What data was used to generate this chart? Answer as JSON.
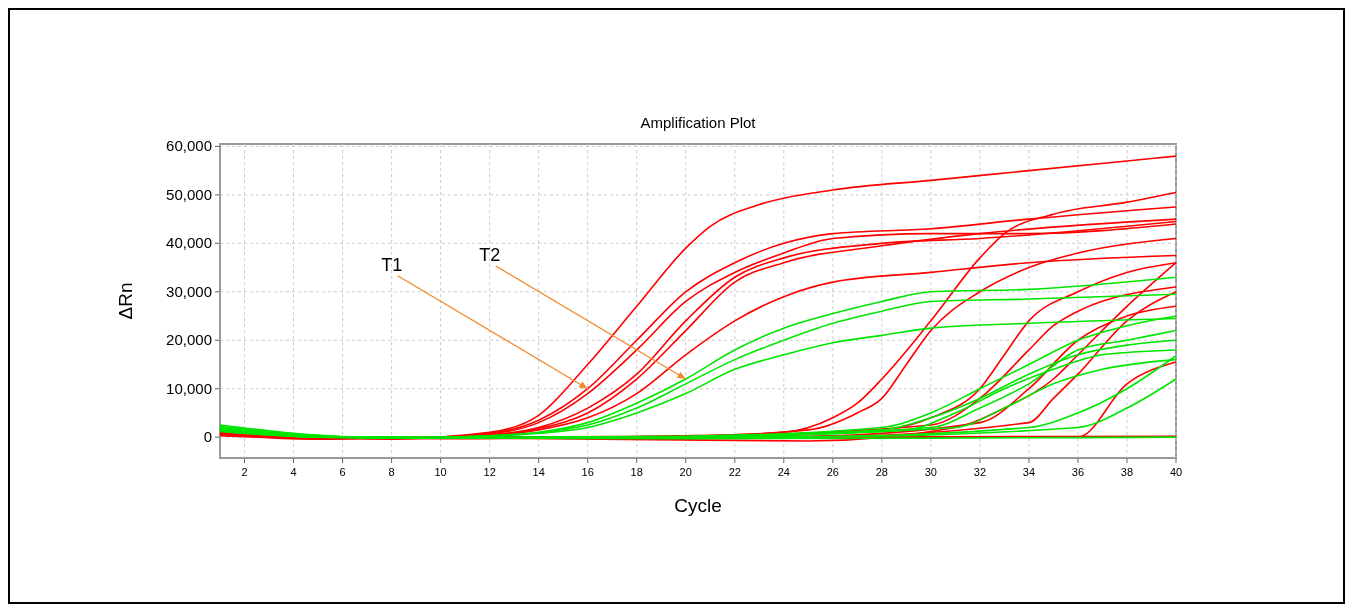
{
  "chart_data": {
    "type": "line",
    "title": "Amplification Plot",
    "xlabel": "Cycle",
    "ylabel": "ΔRn",
    "xlim": [
      1,
      40
    ],
    "xticks": [
      2,
      4,
      6,
      8,
      10,
      12,
      14,
      16,
      18,
      20,
      22,
      24,
      26,
      28,
      30,
      32,
      34,
      36,
      38,
      40
    ],
    "ylim": [
      -4300,
      60500
    ],
    "yticks": [
      {
        "value": 0,
        "label": "0"
      },
      {
        "value": 10000,
        "label": "10,000"
      },
      {
        "value": 20000,
        "label": "20,000"
      },
      {
        "value": 30000,
        "label": "30,000"
      },
      {
        "value": 40000,
        "label": "40,000"
      },
      {
        "value": 50000,
        "label": "50,000"
      },
      {
        "value": 60000,
        "label": "60,000"
      }
    ],
    "grid": true,
    "marker": "none",
    "line_style": "solid",
    "annotations": [
      {
        "text": "T1",
        "x": 16,
        "y": 10000
      },
      {
        "text": "T2",
        "x": 20,
        "y": 12000
      }
    ],
    "series": [
      {
        "color": "#ff0000",
        "x": [
          1,
          4,
          8,
          12,
          14,
          16,
          18,
          20,
          21,
          23,
          26,
          30,
          34,
          38,
          40
        ],
        "values": [
          1000,
          300,
          -300,
          1000,
          4500,
          15000,
          27000,
          39000,
          43500,
          48000,
          51000,
          53000,
          55000,
          57000,
          58000
        ]
      },
      {
        "color": "#ff0000",
        "x": [
          1,
          4,
          8,
          12,
          14,
          16,
          18,
          20,
          22,
          24,
          26,
          30,
          34,
          40
        ],
        "values": [
          800,
          200,
          -300,
          800,
          3500,
          10000,
          20000,
          30000,
          36000,
          40000,
          42000,
          43000,
          45000,
          47500
        ]
      },
      {
        "color": "#ff0000",
        "x": [
          1,
          4,
          8,
          12,
          14,
          16,
          18,
          20,
          22,
          24,
          26,
          30,
          34,
          40
        ],
        "values": [
          600,
          200,
          -200,
          700,
          3000,
          9000,
          18000,
          28000,
          34000,
          38000,
          41000,
          42000,
          42000,
          44000
        ]
      },
      {
        "color": "#ff0000",
        "x": [
          1,
          4,
          8,
          12,
          14,
          16,
          18,
          20,
          22,
          24,
          28,
          32,
          40
        ],
        "values": [
          900,
          300,
          -300,
          500,
          2000,
          6000,
          13000,
          24000,
          33000,
          37000,
          40000,
          41000,
          44500
        ]
      },
      {
        "color": "#ff0000",
        "x": [
          1,
          4,
          8,
          12,
          14,
          16,
          18,
          20,
          22,
          24,
          28,
          32,
          40
        ],
        "values": [
          700,
          200,
          -200,
          400,
          1800,
          5000,
          12000,
          22000,
          32000,
          36000,
          39500,
          42000,
          45000
        ]
      },
      {
        "color": "#ff0000",
        "x": [
          1,
          4,
          8,
          12,
          14,
          16,
          18,
          20,
          22,
          24,
          26,
          30,
          34,
          40
        ],
        "values": [
          500,
          100,
          -300,
          300,
          1500,
          4000,
          9000,
          17000,
          24000,
          29000,
          32000,
          34000,
          36000,
          37500
        ]
      },
      {
        "color": "#ff0000",
        "x": [
          1,
          5,
          10,
          20,
          24,
          26,
          27,
          28,
          30,
          32,
          33,
          35,
          38,
          40
        ],
        "values": [
          1200,
          0,
          -200,
          300,
          1000,
          4000,
          7000,
          12000,
          24000,
          37000,
          42000,
          46000,
          48500,
          50500
        ]
      },
      {
        "color": "#ff0000",
        "x": [
          1,
          5,
          10,
          20,
          25,
          27,
          28,
          29,
          30,
          32,
          34,
          36,
          40
        ],
        "values": [
          800,
          -200,
          0,
          200,
          1500,
          5000,
          8000,
          15000,
          22000,
          30000,
          35000,
          38000,
          41000
        ]
      },
      {
        "color": "#ff0000",
        "x": [
          1,
          5,
          10,
          20,
          28,
          30,
          32,
          33,
          34,
          36,
          38,
          40
        ],
        "values": [
          1000,
          -100,
          -300,
          200,
          1500,
          4000,
          10000,
          17000,
          24000,
          30000,
          34000,
          36000
        ]
      },
      {
        "color": "#ff0000",
        "x": [
          1,
          5,
          10,
          20,
          30,
          32,
          34,
          35,
          36,
          40
        ],
        "values": [
          600,
          0,
          -200,
          100,
          2500,
          8000,
          18000,
          23000,
          26000,
          31000
        ]
      },
      {
        "color": "#ff0000",
        "x": [
          1,
          5,
          10,
          25,
          31,
          33,
          35,
          36,
          38,
          40
        ],
        "values": [
          500,
          -400,
          -100,
          -800,
          2000,
          6000,
          12000,
          17000,
          27000,
          36000
        ]
      },
      {
        "color": "#ff0000",
        "x": [
          1,
          5,
          10,
          25,
          34,
          35,
          36,
          38,
          40
        ],
        "values": [
          900,
          -100,
          -200,
          0,
          3000,
          8000,
          13000,
          24000,
          30000
        ]
      },
      {
        "color": "#ff0000",
        "x": [
          1,
          5,
          10,
          25,
          36,
          38,
          40
        ],
        "values": [
          700,
          0,
          -200,
          0,
          0,
          11000,
          15500
        ]
      },
      {
        "color": "#ff0000",
        "x": [
          1,
          5,
          10,
          25,
          32,
          34,
          36,
          38,
          40
        ],
        "values": [
          400,
          0,
          -100,
          200,
          3000,
          10000,
          20000,
          25000,
          27000
        ]
      },
      {
        "color": "#ff0000",
        "x": [
          1,
          5,
          10,
          20,
          30,
          40
        ],
        "values": [
          300,
          -200,
          -100,
          0,
          100,
          200
        ]
      },
      {
        "color": "#00e600",
        "x": [
          1,
          4,
          8,
          12,
          14,
          16,
          18,
          20,
          22,
          24,
          26,
          28,
          30,
          34,
          40
        ],
        "values": [
          2500,
          800,
          -200,
          300,
          1000,
          3000,
          7000,
          12000,
          18000,
          22500,
          25500,
          28000,
          30000,
          30500,
          33000
        ]
      },
      {
        "color": "#00e600",
        "x": [
          1,
          4,
          8,
          12,
          14,
          16,
          18,
          20,
          22,
          24,
          26,
          28,
          30,
          34,
          40
        ],
        "values": [
          2200,
          700,
          -200,
          300,
          900,
          2500,
          6000,
          11000,
          16000,
          20000,
          23500,
          26000,
          28000,
          28500,
          29500
        ]
      },
      {
        "color": "#00e600",
        "x": [
          1,
          4,
          8,
          12,
          14,
          16,
          18,
          20,
          22,
          24,
          26,
          28,
          30,
          34,
          40
        ],
        "values": [
          2000,
          600,
          -100,
          200,
          800,
          2000,
          5000,
          9000,
          14000,
          17000,
          19500,
          21000,
          22500,
          23500,
          24500
        ]
      },
      {
        "color": "#00e600",
        "x": [
          1,
          5,
          10,
          20,
          28,
          30,
          32,
          34,
          36,
          38,
          40
        ],
        "values": [
          1800,
          200,
          -100,
          200,
          2000,
          5000,
          10000,
          15000,
          20000,
          23000,
          25000
        ]
      },
      {
        "color": "#00e600",
        "x": [
          1,
          5,
          10,
          20,
          28,
          30,
          32,
          34,
          36,
          38,
          40
        ],
        "values": [
          1500,
          100,
          -100,
          100,
          1500,
          4000,
          8000,
          13000,
          17000,
          19000,
          20000
        ]
      },
      {
        "color": "#00e600",
        "x": [
          1,
          5,
          10,
          20,
          29,
          31,
          33,
          35,
          37,
          40
        ],
        "values": [
          1600,
          0,
          -200,
          100,
          1500,
          5000,
          10000,
          14000,
          17000,
          18000
        ]
      },
      {
        "color": "#00e600",
        "x": [
          1,
          5,
          10,
          20,
          30,
          32,
          34,
          36,
          38,
          40
        ],
        "values": [
          1400,
          100,
          -100,
          0,
          2000,
          6000,
          11000,
          18000,
          20000,
          22000
        ]
      },
      {
        "color": "#00e600",
        "x": [
          1,
          5,
          10,
          20,
          31,
          33,
          35,
          37,
          40
        ],
        "values": [
          1700,
          0,
          -200,
          100,
          2000,
          6000,
          11000,
          14000,
          16000
        ]
      },
      {
        "color": "#00e600",
        "x": [
          1,
          5,
          10,
          25,
          34,
          36,
          38,
          40
        ],
        "values": [
          1300,
          0,
          -100,
          100,
          2000,
          5000,
          10000,
          16800
        ]
      },
      {
        "color": "#00e600",
        "x": [
          1,
          5,
          10,
          25,
          36,
          38,
          40
        ],
        "values": [
          1500,
          100,
          -200,
          0,
          2000,
          6000,
          12000
        ]
      },
      {
        "color": "#00e600",
        "x": [
          1,
          5,
          10,
          20,
          30,
          40
        ],
        "values": [
          1200,
          0,
          -200,
          -300,
          -200,
          0
        ]
      }
    ]
  }
}
